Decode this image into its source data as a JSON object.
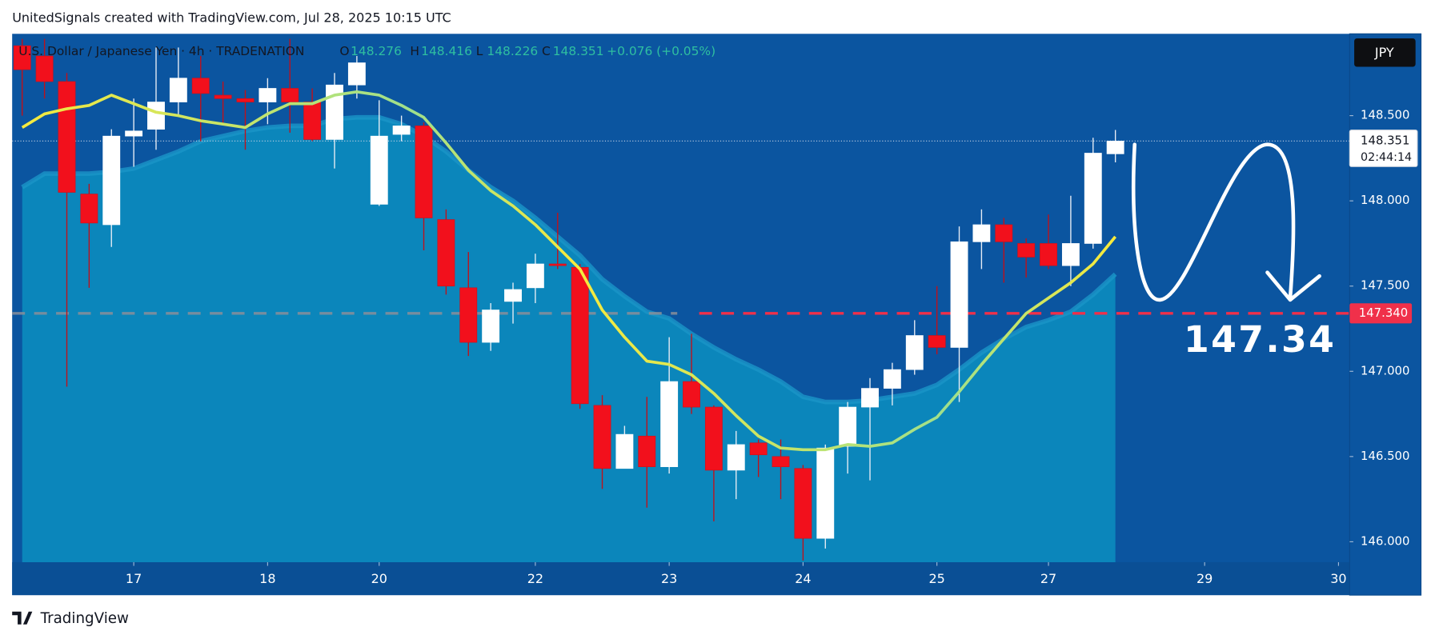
{
  "header": {
    "attribution": "UnitedSignals created with TradingView.com, Jul 28, 2025 10:15 UTC"
  },
  "footer": {
    "brand": "TradingView"
  },
  "chart_data": {
    "type": "candlestick",
    "title": "U.S. Dollar / Japanese Yen · 4h · TRADENATION",
    "ohlc_labels": [
      "O",
      "H",
      "L",
      "C"
    ],
    "change": "+0.076 (+0.05%)",
    "currency": "JPY",
    "countdown": "02:44:14",
    "x": [
      0,
      1,
      2,
      3,
      4,
      5,
      6,
      7,
      8,
      9,
      10,
      11,
      12,
      13,
      14,
      15,
      16,
      17,
      18,
      19,
      20,
      21,
      22,
      23,
      24,
      25,
      26,
      27,
      28,
      29,
      30,
      31,
      32,
      33,
      34,
      35,
      36,
      37,
      38,
      39,
      40,
      41,
      42,
      43,
      44,
      45,
      46,
      47,
      48,
      49
    ],
    "open": [
      148.91,
      148.85,
      148.7,
      148.04,
      147.86,
      148.38,
      148.42,
      148.58,
      148.72,
      148.62,
      148.6,
      148.58,
      148.66,
      148.58,
      148.36,
      148.68,
      147.98,
      148.39,
      148.44,
      147.89,
      147.49,
      147.17,
      147.41,
      147.49,
      147.63,
      147.61,
      146.8,
      146.43,
      146.62,
      146.44,
      146.94,
      146.79,
      146.42,
      146.58,
      146.5,
      146.43,
      146.02,
      146.56,
      146.79,
      146.9,
      147.01,
      147.21,
      147.14,
      147.76,
      147.86,
      147.75,
      147.75,
      147.62,
      147.75,
      148.276
    ],
    "high": [
      148.95,
      148.95,
      148.75,
      148.1,
      148.42,
      148.6,
      148.9,
      148.9,
      148.85,
      148.7,
      148.65,
      148.72,
      148.95,
      148.66,
      148.75,
      148.85,
      148.59,
      148.5,
      148.46,
      147.95,
      147.7,
      147.4,
      147.52,
      147.69,
      147.93,
      147.63,
      146.86,
      146.68,
      146.85,
      147.2,
      147.22,
      146.8,
      146.65,
      146.6,
      146.6,
      146.45,
      146.57,
      146.82,
      146.96,
      147.05,
      147.3,
      147.5,
      147.85,
      147.95,
      147.9,
      147.78,
      147.92,
      148.03,
      148.37,
      148.416
    ],
    "low": [
      148.5,
      148.6,
      146.91,
      147.49,
      147.73,
      148.2,
      148.3,
      148.5,
      148.35,
      148.45,
      148.3,
      148.45,
      148.4,
      148.35,
      148.19,
      148.6,
      147.97,
      148.35,
      147.71,
      147.45,
      147.09,
      147.12,
      147.28,
      147.4,
      147.6,
      146.78,
      146.31,
      146.43,
      146.2,
      146.4,
      146.75,
      146.12,
      146.25,
      146.38,
      146.25,
      145.89,
      145.96,
      146.4,
      146.36,
      146.8,
      146.98,
      147.1,
      146.82,
      147.6,
      147.52,
      147.55,
      147.6,
      147.5,
      147.72,
      148.226
    ],
    "close": [
      148.77,
      148.7,
      148.05,
      147.87,
      148.38,
      148.41,
      148.58,
      148.72,
      148.63,
      148.6,
      148.58,
      148.66,
      148.58,
      148.36,
      148.68,
      148.81,
      148.38,
      148.44,
      147.9,
      147.5,
      147.17,
      147.36,
      147.48,
      147.63,
      147.62,
      146.81,
      146.43,
      146.63,
      146.44,
      146.94,
      146.79,
      146.42,
      146.57,
      146.51,
      146.44,
      146.02,
      146.55,
      146.79,
      146.9,
      147.01,
      147.21,
      147.14,
      147.76,
      147.86,
      147.76,
      147.67,
      147.62,
      147.75,
      148.28,
      148.351
    ],
    "up_color": "#ffffff",
    "down_color": "#f2101c",
    "overlays": [
      {
        "type": "area",
        "color": "#0b86bb",
        "edge_color": "#1a95c8",
        "values": [
          148.08,
          148.16,
          148.16,
          148.16,
          148.17,
          148.19,
          148.24,
          148.29,
          148.35,
          148.38,
          148.41,
          148.43,
          148.44,
          148.44,
          148.48,
          148.49,
          148.49,
          148.45,
          148.38,
          148.29,
          148.18,
          148.08,
          148.0,
          147.9,
          147.79,
          147.68,
          147.54,
          147.44,
          147.35,
          147.31,
          147.22,
          147.14,
          147.07,
          147.01,
          146.94,
          146.85,
          146.82,
          146.82,
          146.83,
          146.85,
          146.87,
          146.92,
          147.01,
          147.11,
          147.19,
          147.26,
          147.3,
          147.35,
          147.45,
          147.57
        ]
      },
      {
        "type": "line",
        "color": "#f7ea3c",
        "color_end": "#9fe08c",
        "values": [
          148.43,
          148.51,
          148.54,
          148.56,
          148.62,
          148.57,
          148.52,
          148.5,
          148.47,
          148.45,
          148.43,
          148.51,
          148.57,
          148.57,
          148.62,
          148.64,
          148.62,
          148.56,
          148.49,
          148.34,
          148.18,
          148.06,
          147.97,
          147.86,
          147.73,
          147.6,
          147.36,
          147.2,
          147.06,
          147.04,
          146.98,
          146.87,
          146.74,
          146.62,
          146.55,
          146.54,
          146.54,
          146.57,
          146.56,
          146.58,
          146.66,
          146.73,
          146.88,
          147.04,
          147.19,
          147.34,
          147.43,
          147.52,
          147.63,
          147.79
        ]
      }
    ],
    "level": {
      "value": 147.34,
      "label": "147.340",
      "color": "#f0304a"
    },
    "xlim": [
      -0.45,
      59.5
    ],
    "ylim": [
      145.88,
      148.98
    ],
    "xticks": [
      {
        "value": 5,
        "label": "17"
      },
      {
        "value": 11,
        "label": "18"
      },
      {
        "value": 16,
        "label": "20"
      },
      {
        "value": 23,
        "label": "22"
      },
      {
        "value": 29,
        "label": "23"
      },
      {
        "value": 35,
        "label": "24"
      },
      {
        "value": 41,
        "label": "25"
      },
      {
        "value": 46,
        "label": "27"
      },
      {
        "value": 53,
        "label": "29"
      },
      {
        "value": 59,
        "label": "30"
      }
    ],
    "yticks": [
      {
        "value": 146,
        "label": "146.000"
      },
      {
        "value": 146.5,
        "label": "146.500"
      },
      {
        "value": 147,
        "label": "147.000"
      },
      {
        "value": 147.5,
        "label": "147.500"
      },
      {
        "value": 148,
        "label": "148.000"
      },
      {
        "value": 148.5,
        "label": "148.500"
      }
    ]
  }
}
